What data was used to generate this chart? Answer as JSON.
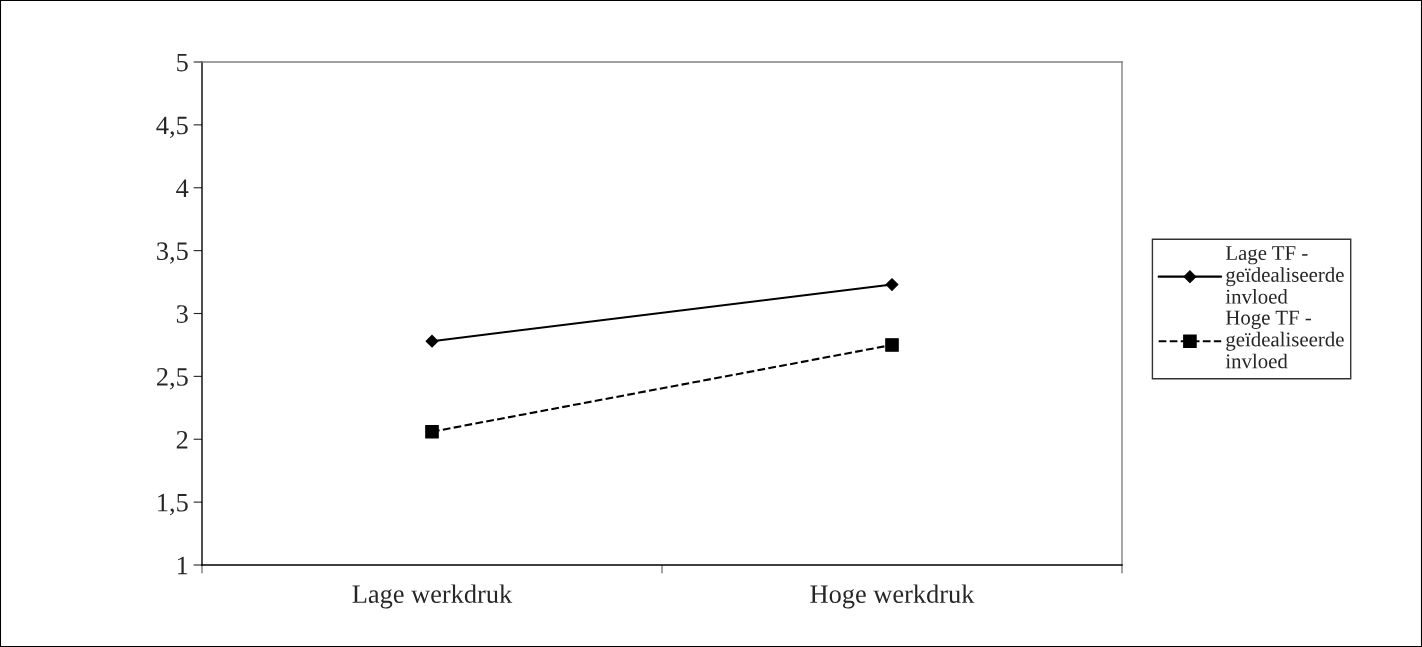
{
  "chart_data": {
    "type": "line",
    "categories": [
      "Lage werkdruk",
      "Hoge werkdruk"
    ],
    "series": [
      {
        "name": "Lage TF -\ngeïdealiseerde\ninvloed",
        "color": "#000000",
        "values": [
          2.78,
          3.23
        ],
        "marker": "diamond",
        "line_style": "solid"
      },
      {
        "name": "Hoge TF -\ngeïdealiseerde\ninvloed",
        "color": "#000000",
        "values": [
          2.06,
          2.75
        ],
        "marker": "square",
        "line_style": "dashed"
      }
    ],
    "ylim": [
      1,
      5
    ],
    "yticks": [
      1,
      {
        "value": 1.5,
        "label": "1,5"
      },
      2,
      {
        "value": 2.5,
        "label": "2,5"
      },
      3,
      {
        "value": 3.5,
        "label": "3,5"
      },
      4,
      {
        "value": 4.5,
        "label": "4,5"
      },
      5
    ],
    "grid": false,
    "legend": "right"
  }
}
